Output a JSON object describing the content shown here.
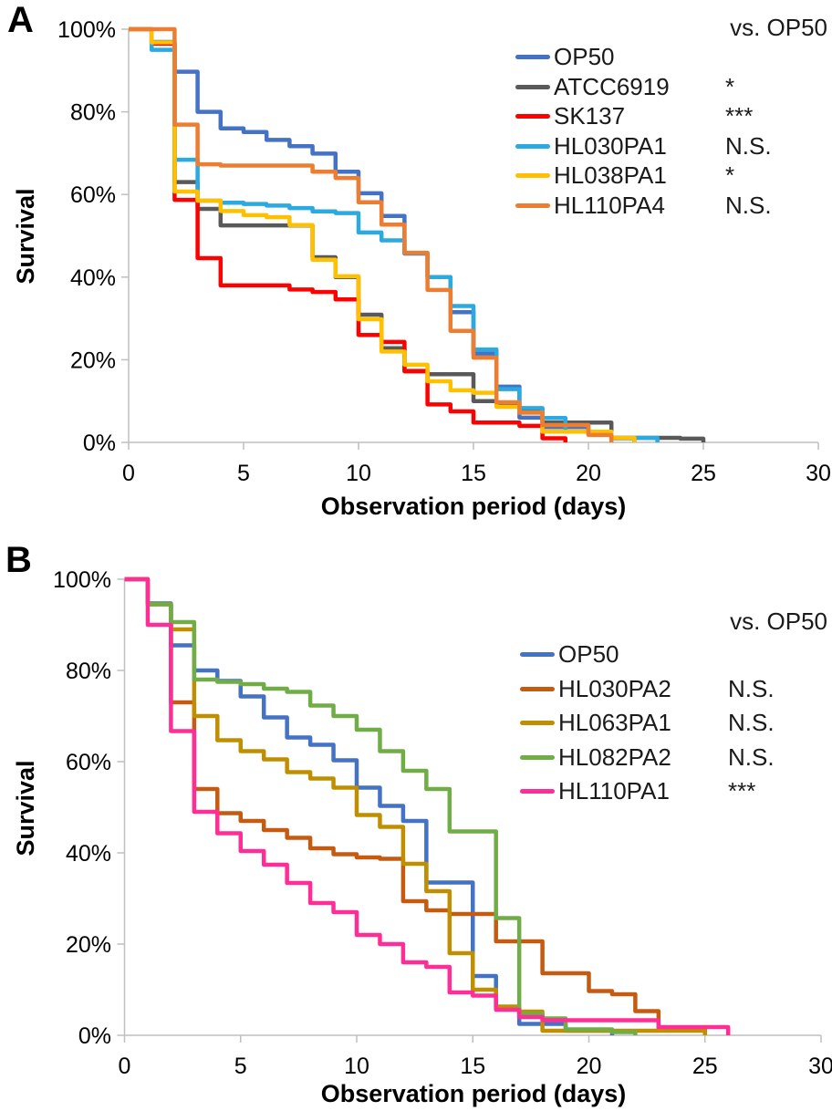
{
  "page": {
    "background": "#ffffff"
  },
  "panels": [
    {
      "letter": "A",
      "legend_note": "vs. OP50"
    },
    {
      "letter": "B",
      "legend_note": "vs. OP50"
    }
  ],
  "chart_data": [
    {
      "type": "line",
      "subtype": "kaplan-meier-step",
      "panel": "A",
      "xlabel": "Observation period (days)",
      "ylabel": "Survival",
      "xlim": [
        0,
        30
      ],
      "ylim": [
        0,
        100
      ],
      "x_ticks": [
        {
          "v": 0,
          "label": "0"
        },
        {
          "v": 5,
          "label": "5"
        },
        {
          "v": 10,
          "label": "10"
        },
        {
          "v": 15,
          "label": "15"
        },
        {
          "v": 20,
          "label": "20"
        },
        {
          "v": 25,
          "label": "25"
        },
        {
          "v": 30,
          "label": "30"
        }
      ],
      "y_ticks": [
        {
          "v": 0,
          "label": "0%"
        },
        {
          "v": 20,
          "label": "20%"
        },
        {
          "v": 40,
          "label": "40%"
        },
        {
          "v": 60,
          "label": "60%"
        },
        {
          "v": 80,
          "label": "80%"
        },
        {
          "v": 100,
          "label": "100%"
        }
      ],
      "grid": false,
      "legend_position": "inside-top-right",
      "legend_note": "vs. OP50",
      "x_step_days": 1,
      "series": [
        {
          "name": "OP50",
          "color": "#4472C4",
          "significance": "",
          "values": [
            100,
            96.9,
            89.7,
            80,
            76,
            75.1,
            73.2,
            71.7,
            69.9,
            65.5,
            60.3,
            54.8,
            45.7,
            40,
            31.5,
            21.5,
            13.5,
            6,
            3.7,
            3.7,
            2,
            1,
            0
          ]
        },
        {
          "name": "ATCC6919",
          "color": "#595959",
          "significance": "*",
          "values": [
            100,
            96.5,
            63,
            56.5,
            52.5,
            52.5,
            52.5,
            52.5,
            44.8,
            40,
            30.9,
            22.8,
            17.3,
            16.5,
            16.5,
            10,
            9,
            8,
            4.8,
            4.8,
            4.8,
            1.1,
            1.1,
            1.1,
            0.9,
            0
          ]
        },
        {
          "name": "SK137",
          "color": "#FF0000",
          "significance": "***",
          "values": [
            100,
            96.5,
            58.7,
            44.6,
            38,
            38,
            38,
            37,
            36.4,
            34.6,
            26,
            24.3,
            17.2,
            9.2,
            7.5,
            4.8,
            4.8,
            4,
            1,
            0
          ]
        },
        {
          "name": "HL030PA1",
          "color": "#2BA9E1",
          "significance": "N.S.",
          "values": [
            100,
            95,
            68.4,
            58.5,
            58,
            57.7,
            57.3,
            56.7,
            55.9,
            55.5,
            50.8,
            48.9,
            45.8,
            40,
            33,
            22.5,
            12.9,
            8.3,
            5.9,
            2.6,
            2.6,
            1.1,
            1.1,
            0
          ]
        },
        {
          "name": "HL038PA1",
          "color": "#FFC000",
          "significance": "*",
          "values": [
            100,
            96.8,
            60.7,
            58.5,
            56,
            55,
            54.5,
            52.6,
            44.2,
            40.2,
            29.8,
            22,
            18.8,
            14.8,
            12.6,
            12,
            8.6,
            7.2,
            2.6,
            2.6,
            2.6,
            1.1,
            0
          ]
        },
        {
          "name": "HL110PA4",
          "color": "#ED7D31",
          "significance": "N.S.",
          "values": [
            100,
            100,
            76.9,
            67.3,
            67,
            67,
            67,
            67,
            65.5,
            64,
            58.1,
            52.7,
            45.9,
            36.9,
            27,
            20.5,
            9.7,
            7.2,
            4.2,
            4.2,
            1.8,
            0
          ]
        }
      ]
    },
    {
      "type": "line",
      "subtype": "kaplan-meier-step",
      "panel": "B",
      "xlabel": "Observation period (days)",
      "ylabel": "Survival",
      "xlim": [
        0,
        30
      ],
      "ylim": [
        0,
        100
      ],
      "x_ticks": [
        {
          "v": 0,
          "label": "0"
        },
        {
          "v": 5,
          "label": "5"
        },
        {
          "v": 10,
          "label": "10"
        },
        {
          "v": 15,
          "label": "15"
        },
        {
          "v": 20,
          "label": "20"
        },
        {
          "v": 25,
          "label": "25"
        },
        {
          "v": 30,
          "label": "30"
        }
      ],
      "y_ticks": [
        {
          "v": 0,
          "label": "0%"
        },
        {
          "v": 20,
          "label": "20%"
        },
        {
          "v": 40,
          "label": "40%"
        },
        {
          "v": 60,
          "label": "60%"
        },
        {
          "v": 80,
          "label": "80%"
        },
        {
          "v": 100,
          "label": "100%"
        }
      ],
      "grid": false,
      "legend_position": "inside-top-right",
      "legend_note": "vs. OP50",
      "x_step_days": 1,
      "series": [
        {
          "name": "OP50",
          "color": "#4472C4",
          "significance": "",
          "values": [
            100,
            94.7,
            85.5,
            80,
            77.7,
            74.3,
            69.7,
            65.3,
            63.7,
            60.3,
            54.3,
            50.3,
            47,
            33.5,
            33.5,
            13,
            6,
            2.5,
            2.5,
            1,
            1,
            0
          ]
        },
        {
          "name": "HL030PA2",
          "color": "#C55A11",
          "significance": "N.S.",
          "values": [
            100,
            94.5,
            73,
            54,
            48.7,
            47,
            45,
            43.3,
            41,
            39.7,
            39,
            38.7,
            29.4,
            27.4,
            26.6,
            26.6,
            20.6,
            20.6,
            13.6,
            13.6,
            9.7,
            9,
            5.3,
            1.5,
            1.5,
            0
          ]
        },
        {
          "name": "HL063PA1",
          "color": "#BF8F00",
          "significance": "N.S.",
          "values": [
            100,
            94.5,
            89,
            70,
            64.7,
            62.3,
            60.5,
            57.7,
            56.3,
            54.3,
            48.3,
            45.7,
            37.6,
            31.6,
            18,
            10,
            6.3,
            5.2,
            1,
            1,
            1,
            1,
            1,
            1,
            1,
            0
          ]
        },
        {
          "name": "HL082PA2",
          "color": "#70AD47",
          "significance": "N.S.",
          "values": [
            100,
            94.5,
            90.6,
            78,
            77.5,
            77,
            76,
            75.3,
            72.3,
            70,
            67,
            62.3,
            58,
            54,
            44.7,
            44.7,
            25.7,
            4.7,
            3.7,
            1.3,
            1.3,
            0.7,
            0
          ]
        },
        {
          "name": "HL110PA1",
          "color": "#FF2D96",
          "significance": "***",
          "values": [
            100,
            90,
            66.7,
            49,
            44.3,
            40.4,
            37.4,
            33.4,
            29,
            27,
            22,
            20,
            16,
            15,
            9.4,
            8.7,
            5.6,
            4,
            3.3,
            3.3,
            3.3,
            3.3,
            3.3,
            1.8,
            1.8,
            1.8,
            0
          ]
        }
      ]
    }
  ]
}
